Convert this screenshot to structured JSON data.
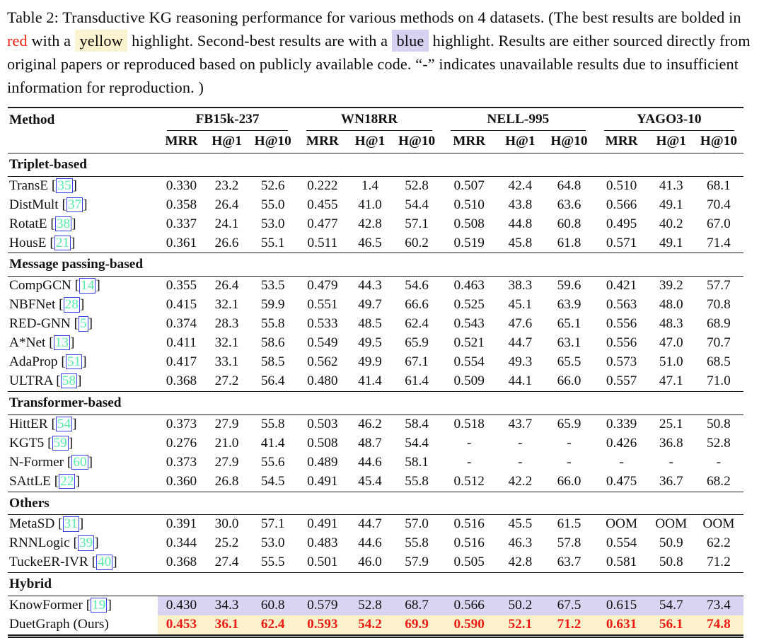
{
  "caption": {
    "parts": [
      {
        "text": "Table 2: Transductive KG reasoning performance for various methods on 4 datasets. (The best results are bolded in "
      },
      {
        "text": "red",
        "style": "red-text"
      },
      {
        "text": " with a "
      },
      {
        "text": " yellow ",
        "style": "yellow-hl"
      },
      {
        "text": " highlight. Second-best results are with a "
      },
      {
        "text": " blue ",
        "style": "blue-hl"
      },
      {
        "text": " highlight. Results are either sourced directly from original papers or reproduced based on publicly available code. “-” indicates unavailable results due to insufficient information for reproduction. )"
      }
    ]
  },
  "colors": {
    "best_text": "#ed1c16",
    "best_highlight": "#fbf2cc",
    "second_highlight": "#d8d5f3",
    "citation_text": "#58eda7",
    "citation_border": "#3742e0"
  },
  "table": {
    "method_header": "Method",
    "groups": [
      "FB15k-237",
      "WN18RR",
      "NELL-995",
      "YAGO3-10"
    ],
    "metrics": [
      "MRR",
      "H@1",
      "H@10"
    ],
    "sections": [
      {
        "title": "Triplet-based",
        "rows": [
          {
            "method": "TransE",
            "cite": "35",
            "values": [
              "0.330",
              "23.2",
              "52.6",
              "0.222",
              "1.4",
              "52.8",
              "0.507",
              "42.4",
              "64.8",
              "0.510",
              "41.3",
              "68.1"
            ]
          },
          {
            "method": "DistMult",
            "cite": "37",
            "values": [
              "0.358",
              "26.4",
              "55.0",
              "0.455",
              "41.0",
              "54.4",
              "0.510",
              "43.8",
              "63.6",
              "0.566",
              "49.1",
              "70.4"
            ]
          },
          {
            "method": "RotatE",
            "cite": "38",
            "values": [
              "0.337",
              "24.1",
              "53.0",
              "0.477",
              "42.8",
              "57.1",
              "0.508",
              "44.8",
              "60.8",
              "0.495",
              "40.2",
              "67.0"
            ]
          },
          {
            "method": "HousE",
            "cite": "21",
            "values": [
              "0.361",
              "26.6",
              "55.1",
              "0.511",
              "46.5",
              "60.2",
              "0.519",
              "45.8",
              "61.8",
              "0.571",
              "49.1",
              "71.4"
            ]
          }
        ]
      },
      {
        "title": "Message passing-based",
        "rows": [
          {
            "method": "CompGCN",
            "cite": "14",
            "values": [
              "0.355",
              "26.4",
              "53.5",
              "0.479",
              "44.3",
              "54.6",
              "0.463",
              "38.3",
              "59.6",
              "0.421",
              "39.2",
              "57.7"
            ]
          },
          {
            "method": "NBFNet",
            "cite": "28",
            "values": [
              "0.415",
              "32.1",
              "59.9",
              "0.551",
              "49.7",
              "66.6",
              "0.525",
              "45.1",
              "63.9",
              "0.563",
              "48.0",
              "70.8"
            ]
          },
          {
            "method": "RED-GNN",
            "cite": "5",
            "values": [
              "0.374",
              "28.3",
              "55.8",
              "0.533",
              "48.5",
              "62.4",
              "0.543",
              "47.6",
              "65.1",
              "0.556",
              "48.3",
              "68.9"
            ]
          },
          {
            "method": "A*Net",
            "cite": "13",
            "values": [
              "0.411",
              "32.1",
              "58.6",
              "0.549",
              "49.5",
              "65.9",
              "0.521",
              "44.7",
              "63.1",
              "0.556",
              "47.0",
              "70.7"
            ]
          },
          {
            "method": "AdaProp",
            "cite": "51",
            "values": [
              "0.417",
              "33.1",
              "58.5",
              "0.562",
              "49.9",
              "67.1",
              "0.554",
              "49.3",
              "65.5",
              "0.573",
              "51.0",
              "68.5"
            ]
          },
          {
            "method": "ULTRA",
            "cite": "58",
            "values": [
              "0.368",
              "27.2",
              "56.4",
              "0.480",
              "41.4",
              "61.4",
              "0.509",
              "44.1",
              "66.0",
              "0.557",
              "47.1",
              "71.0"
            ]
          }
        ]
      },
      {
        "title": "Transformer-based",
        "rows": [
          {
            "method": "HittER",
            "cite": "54",
            "values": [
              "0.373",
              "27.9",
              "55.8",
              "0.503",
              "46.2",
              "58.4",
              "0.518",
              "43.7",
              "65.9",
              "0.339",
              "25.1",
              "50.8"
            ]
          },
          {
            "method": "KGT5",
            "cite": "59",
            "values": [
              "0.276",
              "21.0",
              "41.4",
              "0.508",
              "48.7",
              "54.4",
              "-",
              "-",
              "-",
              "0.426",
              "36.8",
              "52.8"
            ]
          },
          {
            "method": "N-Former",
            "cite": "60",
            "values": [
              "0.373",
              "27.9",
              "55.6",
              "0.489",
              "44.6",
              "58.1",
              "-",
              "-",
              "-",
              "-",
              "-",
              "-"
            ]
          },
          {
            "method": "SAttLE",
            "cite": "22",
            "values": [
              "0.360",
              "26.8",
              "54.5",
              "0.491",
              "45.4",
              "55.8",
              "0.512",
              "42.2",
              "66.0",
              "0.475",
              "36.7",
              "68.2"
            ]
          }
        ]
      },
      {
        "title": "Others",
        "rows": [
          {
            "method": "MetaSD",
            "cite": "31",
            "values": [
              "0.391",
              "30.0",
              "57.1",
              "0.491",
              "44.7",
              "57.0",
              "0.516",
              "45.5",
              "61.5",
              "OOM",
              "OOM",
              "OOM"
            ]
          },
          {
            "method": "RNNLogic",
            "cite": "39",
            "values": [
              "0.344",
              "25.2",
              "53.0",
              "0.483",
              "44.6",
              "55.8",
              "0.516",
              "46.3",
              "57.8",
              "0.554",
              "50.9",
              "62.2"
            ]
          },
          {
            "method": "TuckeER-IVR",
            "cite": "40",
            "values": [
              "0.368",
              "27.4",
              "55.5",
              "0.501",
              "46.0",
              "57.9",
              "0.505",
              "42.8",
              "63.7",
              "0.581",
              "50.8",
              "71.2"
            ]
          }
        ]
      },
      {
        "title": "Hybrid",
        "rows": [
          {
            "method": "KnowFormer",
            "cite": "19",
            "highlight": "second",
            "values": [
              "0.430",
              "34.3",
              "60.8",
              "0.579",
              "52.8",
              "68.7",
              "0.566",
              "50.2",
              "67.5",
              "0.615",
              "54.7",
              "73.4"
            ]
          },
          {
            "method": "DuetGraph (Ours)",
            "highlight": "best",
            "values": [
              "0.453",
              "36.1",
              "62.4",
              "0.593",
              "54.2",
              "69.9",
              "0.590",
              "52.1",
              "71.2",
              "0.631",
              "56.1",
              "74.8"
            ]
          }
        ]
      }
    ]
  }
}
